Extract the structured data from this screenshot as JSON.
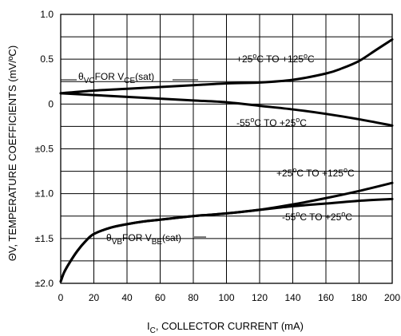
{
  "chart_data": {
    "type": "line",
    "title": "",
    "xlabel": {
      "main": "I",
      "sub": "C",
      "rest": ", COLLECTOR CURRENT (mA)"
    },
    "ylabel": "ΘV, TEMPERATURE COEFFICIENTS (mV/ºC)",
    "xlim": [
      0,
      200
    ],
    "ylim": [
      -2.0,
      1.0
    ],
    "grid": true,
    "x_ticks": [
      0,
      20,
      40,
      60,
      80,
      100,
      120,
      140,
      160,
      180,
      200
    ],
    "y_ticks": [
      {
        "value": 1.0,
        "label": "1.0"
      },
      {
        "value": 0.5,
        "label": "0.5"
      },
      {
        "value": 0.0,
        "label": "0"
      },
      {
        "value": -0.5,
        "label": "±0.5"
      },
      {
        "value": -1.0,
        "label": "±1.0"
      },
      {
        "value": -1.5,
        "label": "±1.5"
      },
      {
        "value": -2.0,
        "label": "±2.0"
      }
    ],
    "series": [
      {
        "name": "+25°C TO +125°C (θVC FOR VCE(sat))",
        "x": [
          0,
          20,
          40,
          60,
          80,
          100,
          120,
          140,
          160,
          170,
          180,
          190,
          200
        ],
        "y": [
          0.12,
          0.15,
          0.17,
          0.19,
          0.21,
          0.23,
          0.24,
          0.27,
          0.34,
          0.4,
          0.48,
          0.6,
          0.72
        ]
      },
      {
        "name": "-55°C TO +25°C (θVC FOR VCE(sat))",
        "x": [
          0,
          20,
          40,
          60,
          80,
          100,
          120,
          140,
          160,
          180,
          200
        ],
        "y": [
          0.12,
          0.1,
          0.08,
          0.06,
          0.04,
          0.02,
          -0.02,
          -0.06,
          -0.11,
          -0.17,
          -0.24
        ]
      },
      {
        "name": "+25°C TO +125°C (θVB FOR VBE(sat))",
        "x": [
          0,
          2,
          5,
          10,
          15,
          20,
          30,
          40,
          50,
          60,
          80,
          100,
          120,
          140,
          160,
          180,
          200
        ],
        "y": [
          -1.98,
          -1.88,
          -1.78,
          -1.64,
          -1.53,
          -1.45,
          -1.38,
          -1.34,
          -1.31,
          -1.29,
          -1.25,
          -1.22,
          -1.18,
          -1.12,
          -1.05,
          -0.97,
          -0.88
        ]
      },
      {
        "name": "-55°C TO +25°C (θVB FOR VBE(sat))",
        "x": [
          0,
          2,
          5,
          10,
          15,
          20,
          30,
          40,
          50,
          60,
          80,
          100,
          120,
          140,
          160,
          180,
          200
        ],
        "y": [
          -1.98,
          -1.88,
          -1.78,
          -1.64,
          -1.53,
          -1.45,
          -1.38,
          -1.34,
          -1.31,
          -1.29,
          -1.25,
          -1.22,
          -1.18,
          -1.14,
          -1.11,
          -1.08,
          -1.06
        ]
      }
    ],
    "annotations": {
      "vc_label": {
        "theta": "θ",
        "theta_sub": "VC",
        "mid": "FOR V",
        "v_sub": "CE",
        "tail": "(sat)"
      },
      "vb_label": {
        "theta": "θ",
        "theta_sub": "VB",
        "mid": "FOR V",
        "v_sub": "BE",
        "tail": "(sat)"
      },
      "upper_hot": {
        "pre": "+25",
        "deg1": "o",
        "mid": "C TO +125",
        "deg2": "o",
        "post": "C"
      },
      "upper_cold": {
        "pre": "-55",
        "deg1": "o",
        "mid": "C TO +25",
        "deg2": "o",
        "post": "C"
      },
      "lower_hot": {
        "pre": "+25",
        "deg1": "o",
        "mid": "C TO +125",
        "deg2": "o",
        "post": "C"
      },
      "lower_cold": {
        "pre": "-55",
        "deg1": "o",
        "mid": "C TO +25",
        "deg2": "o",
        "post": "C"
      }
    }
  }
}
